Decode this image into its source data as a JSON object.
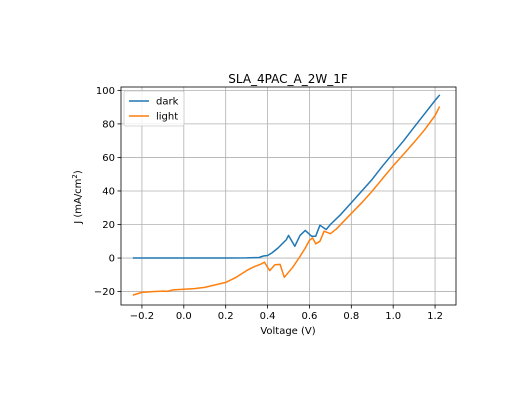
{
  "chart_data": {
    "type": "line",
    "title": "SLA_4PAC_A_2W_1F",
    "xlabel": "Voltage (V)",
    "ylabel_main": "J (mA/cm",
    "ylabel_sup": "2",
    "ylabel_close": ")",
    "xlim": [
      -0.3,
      1.3
    ],
    "ylim": [
      -28,
      102
    ],
    "x_ticks": [
      -0.2,
      0.0,
      0.2,
      0.4,
      0.6,
      0.8,
      1.0,
      1.2
    ],
    "x_tick_labels": [
      "−0.2",
      "0.0",
      "0.2",
      "0.4",
      "0.6",
      "0.8",
      "1.0",
      "1.2"
    ],
    "y_ticks": [
      -20,
      0,
      20,
      40,
      60,
      80,
      100
    ],
    "y_tick_labels": [
      "−20",
      "0",
      "20",
      "40",
      "60",
      "80",
      "100"
    ],
    "grid": true,
    "legend_position": "upper left",
    "series": [
      {
        "name": "dark",
        "color": "#1f77b4",
        "points": [
          [
            -0.24,
            0
          ],
          [
            -0.1,
            0
          ],
          [
            0.0,
            0
          ],
          [
            0.1,
            0
          ],
          [
            0.2,
            0
          ],
          [
            0.3,
            0.1
          ],
          [
            0.36,
            0.3
          ],
          [
            0.38,
            1.2
          ],
          [
            0.4,
            1.5
          ],
          [
            0.42,
            3
          ],
          [
            0.45,
            6
          ],
          [
            0.49,
            11
          ],
          [
            0.5,
            13.5
          ],
          [
            0.53,
            7
          ],
          [
            0.555,
            13.5
          ],
          [
            0.58,
            16.5
          ],
          [
            0.61,
            13
          ],
          [
            0.63,
            13
          ],
          [
            0.65,
            19.5
          ],
          [
            0.68,
            17
          ],
          [
            0.7,
            20
          ],
          [
            0.75,
            26
          ],
          [
            0.8,
            33
          ],
          [
            0.85,
            40
          ],
          [
            0.9,
            47
          ],
          [
            0.95,
            55
          ],
          [
            1.0,
            62.5
          ],
          [
            1.05,
            70
          ],
          [
            1.1,
            78
          ],
          [
            1.15,
            86
          ],
          [
            1.2,
            94
          ],
          [
            1.22,
            97
          ]
        ]
      },
      {
        "name": "light",
        "color": "#ff7f0e",
        "points": [
          [
            -0.24,
            -22
          ],
          [
            -0.2,
            -20.5
          ],
          [
            -0.15,
            -20
          ],
          [
            -0.1,
            -19.7
          ],
          [
            -0.08,
            -19.9
          ],
          [
            -0.05,
            -19
          ],
          [
            0.0,
            -18.6
          ],
          [
            0.05,
            -18.2
          ],
          [
            0.1,
            -17.5
          ],
          [
            0.15,
            -16
          ],
          [
            0.2,
            -14.5
          ],
          [
            0.25,
            -11.5
          ],
          [
            0.3,
            -7.5
          ],
          [
            0.33,
            -5.5
          ],
          [
            0.37,
            -3.5
          ],
          [
            0.385,
            -2.5
          ],
          [
            0.41,
            -7.5
          ],
          [
            0.435,
            -4
          ],
          [
            0.46,
            -3.8
          ],
          [
            0.48,
            -11.5
          ],
          [
            0.52,
            -5.5
          ],
          [
            0.55,
            0
          ],
          [
            0.58,
            6
          ],
          [
            0.6,
            10.5
          ],
          [
            0.615,
            12
          ],
          [
            0.63,
            8.5
          ],
          [
            0.65,
            10
          ],
          [
            0.67,
            16
          ],
          [
            0.7,
            14.5
          ],
          [
            0.73,
            17.5
          ],
          [
            0.78,
            24
          ],
          [
            0.85,
            33
          ],
          [
            0.9,
            40
          ],
          [
            0.95,
            47.5
          ],
          [
            1.0,
            55
          ],
          [
            1.05,
            62
          ],
          [
            1.1,
            69
          ],
          [
            1.15,
            76.5
          ],
          [
            1.2,
            85
          ],
          [
            1.22,
            90
          ]
        ]
      }
    ]
  }
}
